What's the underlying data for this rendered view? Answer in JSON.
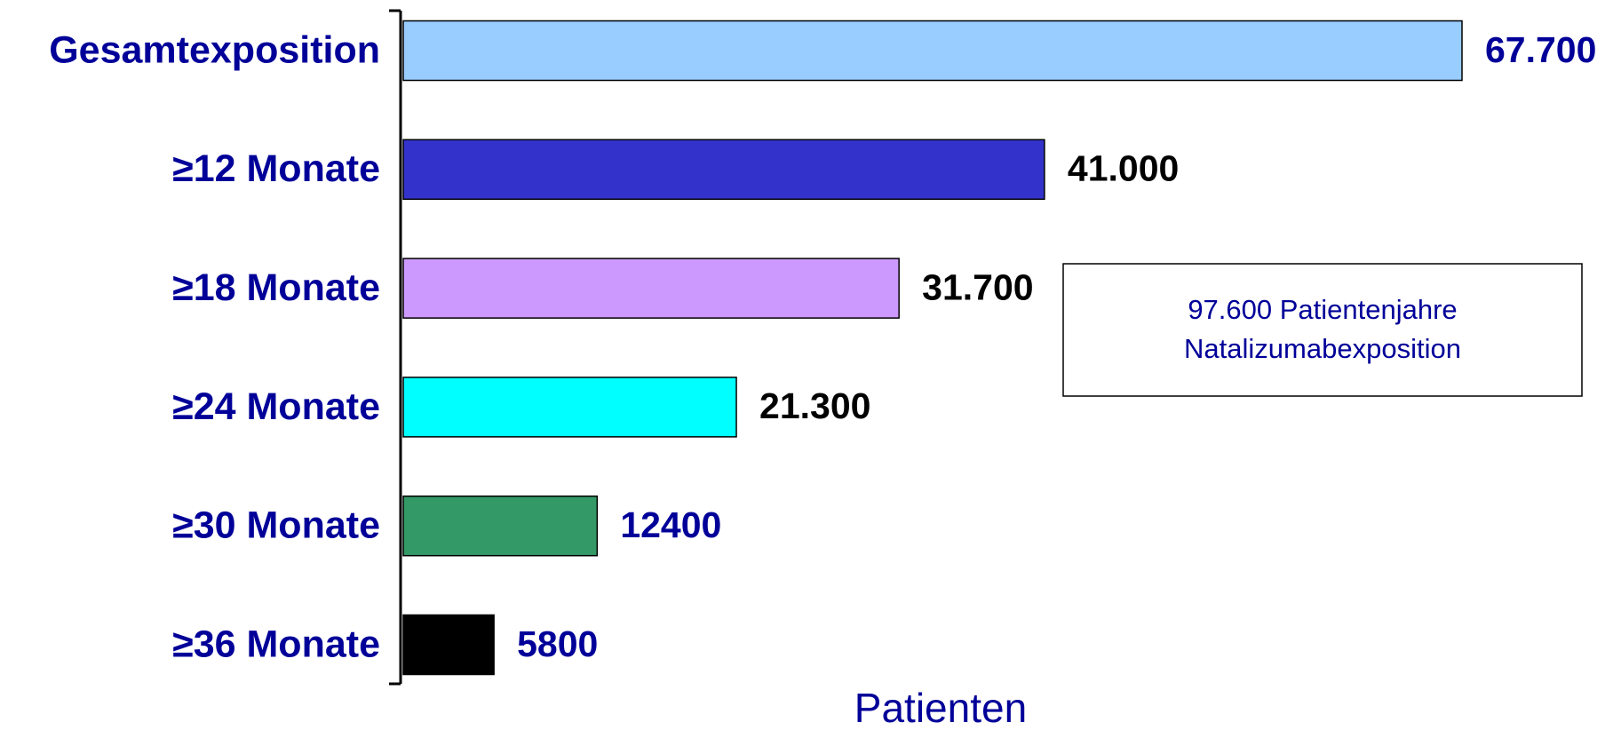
{
  "chart_data": {
    "type": "bar",
    "orientation": "horizontal",
    "categories": [
      "Gesamtexposition",
      "≥12 Monate",
      "≥18 Monate",
      "≥24 Monate",
      "≥30 Monate",
      "≥36 Monate"
    ],
    "values": [
      67700,
      41000,
      31700,
      21300,
      12400,
      5800
    ],
    "value_labels": [
      "67.700",
      "41.000",
      "31.700",
      "21.300",
      "12400",
      "5800"
    ],
    "colors": [
      "#99ccff",
      "#3333cc",
      "#cc99ff",
      "#00ffff",
      "#339966",
      "#000000"
    ],
    "value_label_colors": [
      "#000099",
      "#000000",
      "#000000",
      "#000000",
      "#000099",
      "#000099"
    ],
    "xlim": [
      0,
      67700
    ],
    "xlabel": "Patienten",
    "annotation": [
      "97.600 Patientenjahre",
      "Natalizumabexposition"
    ]
  }
}
